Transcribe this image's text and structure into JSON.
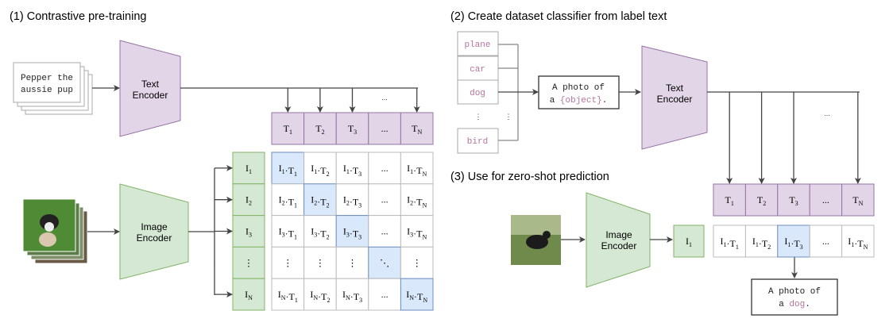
{
  "sections": {
    "pretraining_title": "(1) Contrastive pre-training",
    "classifier_title": "(2) Create dataset classifier from label text",
    "zeroshot_title": "(3) Use for zero-shot prediction"
  },
  "colors": {
    "text_encoder_fill": "#e1d5e7",
    "text_encoder_stroke": "#9673a6",
    "image_encoder_fill": "#d5e8d4",
    "image_encoder_stroke": "#82b366",
    "highlight_fill": "#dae8fc",
    "highlight_stroke": "#6c8ebf",
    "class_label_text": "#b5739d"
  },
  "pretraining": {
    "input_text": [
      "Pepper the",
      "aussie pup"
    ],
    "text_encoder": [
      "Text",
      "Encoder"
    ],
    "image_encoder": [
      "Image",
      "Encoder"
    ],
    "top_ellipsis": "...",
    "left_ellipsis": "⋮",
    "pair_separator": "·",
    "text_embeddings": [
      {
        "base": "T",
        "sub": "1"
      },
      {
        "base": "T",
        "sub": "2"
      },
      {
        "base": "T",
        "sub": "3"
      },
      {
        "text": "..."
      },
      {
        "base": "T",
        "sub": "N"
      }
    ],
    "image_embeddings": [
      {
        "base": "I",
        "sub": "1"
      },
      {
        "base": "I",
        "sub": "2"
      },
      {
        "base": "I",
        "sub": "3"
      },
      {
        "text": "⋮"
      },
      {
        "base": "I",
        "sub": "N"
      }
    ],
    "matrix": [
      [
        [
          "1",
          "1"
        ],
        [
          "1",
          "2"
        ],
        [
          "1",
          "3"
        ],
        "...",
        [
          "1",
          "N"
        ]
      ],
      [
        [
          "2",
          "1"
        ],
        [
          "2",
          "2"
        ],
        [
          "2",
          "3"
        ],
        "...",
        [
          "2",
          "N"
        ]
      ],
      [
        [
          "3",
          "1"
        ],
        [
          "3",
          "2"
        ],
        [
          "3",
          "3"
        ],
        "...",
        [
          "3",
          "N"
        ]
      ],
      [
        "⋮",
        "⋮",
        "⋮",
        "⋱",
        "⋮"
      ],
      [
        [
          "N",
          "1"
        ],
        [
          "N",
          "2"
        ],
        [
          "N",
          "3"
        ],
        "...",
        [
          "N",
          "N"
        ]
      ]
    ],
    "highlighted": "diagonal"
  },
  "classifier": {
    "labels": [
      "plane",
      "car",
      "dog",
      "bird"
    ],
    "label_ellipsis": "⋮",
    "prompt_prefix_line1": "A photo of",
    "prompt_line2_prefix": "a ",
    "prompt_placeholder": "{object}",
    "prompt_suffix": ".",
    "text_encoder": [
      "Text",
      "Encoder"
    ],
    "top_ellipsis": "...",
    "text_embeddings": [
      {
        "base": "T",
        "sub": "1"
      },
      {
        "base": "T",
        "sub": "2"
      },
      {
        "base": "T",
        "sub": "3"
      },
      {
        "text": "..."
      },
      {
        "base": "T",
        "sub": "N"
      }
    ]
  },
  "zeroshot": {
    "image_encoder": [
      "Image",
      "Encoder"
    ],
    "image_embedding": {
      "base": "I",
      "sub": "1"
    },
    "scores": [
      [
        "1",
        "1"
      ],
      [
        "1",
        "2"
      ],
      [
        "1",
        "3"
      ],
      "...",
      [
        "1",
        "N"
      ]
    ],
    "highlighted_index": 2,
    "result_line1": "A photo of",
    "result_line2_prefix": "a ",
    "result_class": "dog",
    "result_suffix": "."
  }
}
